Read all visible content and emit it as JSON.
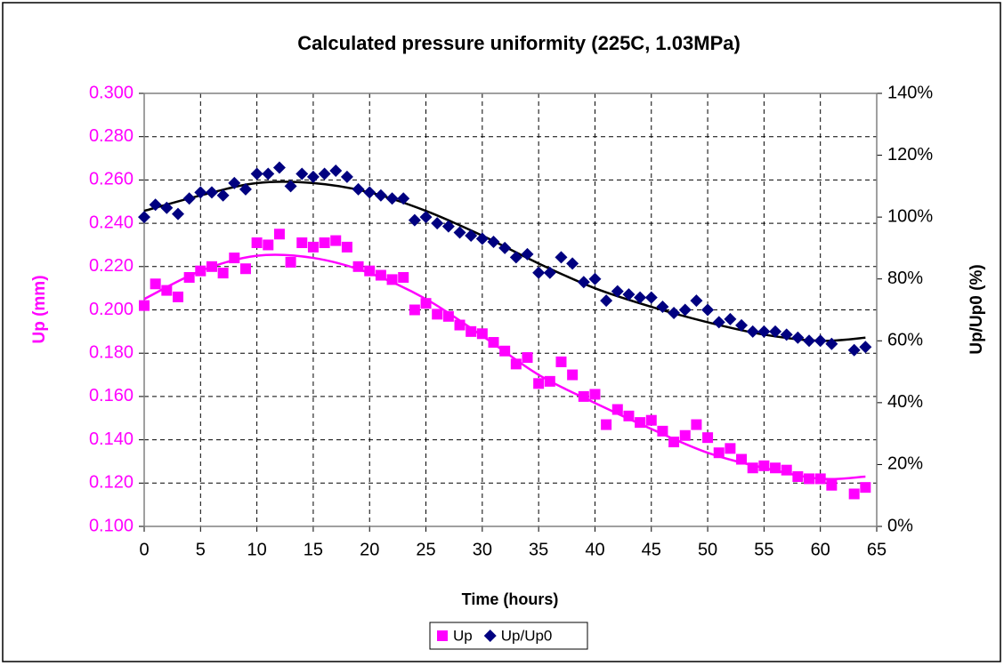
{
  "chart_data": {
    "type": "scatter",
    "title": "Calculated pressure uniformity (225C, 1.03MPa)",
    "x_label": "Time (hours)",
    "y_label": "Up (mm)",
    "y2_label": "Up/Up0 (%)",
    "xlim": [
      0,
      65
    ],
    "xticks": [
      0,
      5,
      10,
      15,
      20,
      25,
      30,
      35,
      40,
      45,
      50,
      55,
      60,
      65
    ],
    "ylim": [
      0.1,
      0.3
    ],
    "yticks": [
      {
        "value": 0.1,
        "label": "0.100"
      },
      {
        "value": 0.12,
        "label": "0.120"
      },
      {
        "value": 0.14,
        "label": "0.140"
      },
      {
        "value": 0.16,
        "label": "0.160"
      },
      {
        "value": 0.18,
        "label": "0.180"
      },
      {
        "value": 0.2,
        "label": "0.200"
      },
      {
        "value": 0.22,
        "label": "0.220"
      },
      {
        "value": 0.24,
        "label": "0.240"
      },
      {
        "value": 0.26,
        "label": "0.260"
      },
      {
        "value": 0.28,
        "label": "0.280"
      },
      {
        "value": 0.3,
        "label": "0.300"
      }
    ],
    "y2lim": [
      0,
      140
    ],
    "y2ticks": [
      {
        "value": 0,
        "label": "0%"
      },
      {
        "value": 20,
        "label": "20%"
      },
      {
        "value": 40,
        "label": "40%"
      },
      {
        "value": 60,
        "label": "60%"
      },
      {
        "value": 80,
        "label": "80%"
      },
      {
        "value": 100,
        "label": "100%"
      },
      {
        "value": 120,
        "label": "120%"
      },
      {
        "value": 140,
        "label": "140%"
      }
    ],
    "grid": true,
    "legend": "bottom",
    "x": [
      0,
      1,
      2,
      3,
      4,
      5,
      6,
      7,
      8,
      9,
      10,
      11,
      12,
      13,
      14,
      15,
      16,
      17,
      18,
      19,
      20,
      21,
      22,
      23,
      24,
      25,
      26,
      27,
      28,
      29,
      30,
      31,
      32,
      33,
      34,
      35,
      36,
      37,
      38,
      39,
      40,
      41,
      42,
      43,
      44,
      45,
      46,
      47,
      48,
      49,
      50,
      51,
      52,
      53,
      54,
      55,
      56,
      57,
      58,
      59,
      60,
      61,
      63,
      64
    ],
    "trend_x": [
      0,
      5,
      10,
      15,
      20,
      25,
      30,
      35,
      40,
      45,
      50,
      55,
      60,
      64
    ],
    "series": [
      {
        "name": "Up",
        "color": "#ff00ff",
        "marker": "square",
        "values": [
          0.202,
          0.212,
          0.209,
          0.206,
          0.215,
          0.218,
          0.22,
          0.217,
          0.224,
          0.219,
          0.231,
          0.23,
          0.235,
          0.222,
          0.231,
          0.229,
          0.231,
          0.232,
          0.229,
          0.22,
          0.218,
          0.216,
          0.214,
          0.215,
          0.2,
          0.203,
          0.198,
          0.197,
          0.193,
          0.19,
          0.189,
          0.185,
          0.181,
          0.175,
          0.178,
          0.166,
          0.167,
          0.176,
          0.17,
          0.16,
          0.161,
          0.147,
          0.154,
          0.151,
          0.148,
          0.149,
          0.144,
          0.139,
          0.142,
          0.147,
          0.141,
          0.134,
          0.136,
          0.131,
          0.127,
          0.128,
          0.127,
          0.126,
          0.123,
          0.122,
          0.122,
          0.119,
          0.115,
          0.118
        ],
        "trend": [
          0.205,
          0.218,
          0.225,
          0.224,
          0.217,
          0.205,
          0.188,
          0.17,
          0.157,
          0.145,
          0.134,
          0.127,
          0.122,
          0.123
        ]
      },
      {
        "name": "Up/Up0",
        "color": "#000080",
        "marker": "diamond",
        "axis": "y2",
        "trend_color": "#000000",
        "values": [
          100,
          104,
          103,
          101,
          106,
          108,
          108,
          107,
          111,
          109,
          114,
          114,
          116,
          110,
          114,
          113,
          114,
          115,
          113,
          109,
          108,
          107,
          106,
          106,
          99,
          100,
          98,
          97,
          95,
          94,
          93,
          92,
          90,
          87,
          88,
          82,
          82,
          87,
          85,
          79,
          80,
          73,
          76,
          75,
          74,
          74,
          71,
          69,
          70,
          73,
          70,
          66,
          67,
          65,
          63,
          63,
          63,
          62,
          61,
          60,
          60,
          59,
          57,
          58
        ],
        "trend": [
          102,
          107,
          111,
          111,
          108,
          102,
          94,
          85,
          77,
          71,
          66,
          62,
          60,
          61
        ]
      }
    ]
  }
}
